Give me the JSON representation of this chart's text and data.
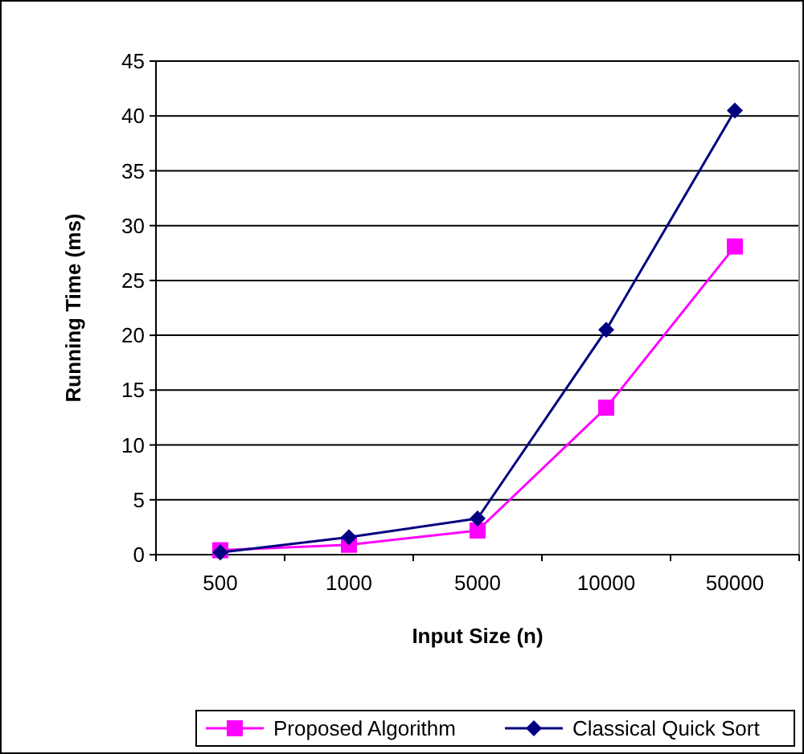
{
  "chart_data": {
    "type": "line",
    "xlabel": "Input Size (n)",
    "ylabel": "Running Time (ms)",
    "categories": [
      "500",
      "1000",
      "5000",
      "10000",
      "50000"
    ],
    "series": [
      {
        "name": "Proposed Algorithm",
        "color": "#ff00ff",
        "marker": "square",
        "values": [
          0.4,
          0.9,
          2.2,
          13.4,
          28.1
        ]
      },
      {
        "name": "Classical Quick Sort",
        "color": "#000080",
        "marker": "diamond",
        "values": [
          0.2,
          1.6,
          3.3,
          20.5,
          40.5
        ]
      }
    ],
    "ylim": [
      0,
      45
    ],
    "yticks": [
      0,
      5,
      10,
      15,
      20,
      25,
      30,
      35,
      40,
      45
    ],
    "grid": "y",
    "legend": "bottom"
  }
}
